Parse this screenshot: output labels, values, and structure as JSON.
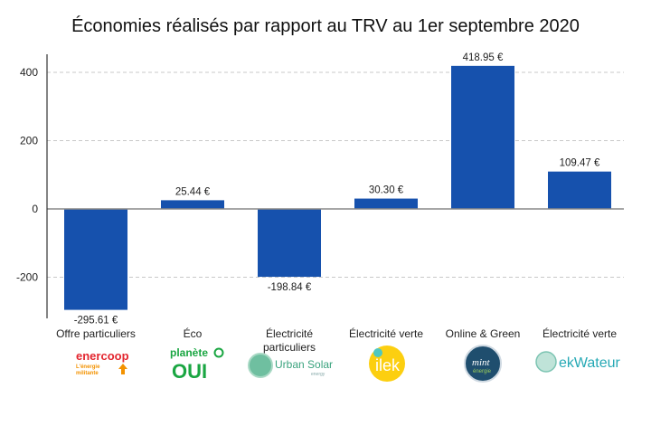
{
  "chart_data": {
    "type": "bar",
    "title": "Économies réalisés par rapport au TRV au 1er septembre 2020",
    "xlabel": "",
    "ylabel": "",
    "ylim": [
      -320,
      440
    ],
    "yticks": [
      400,
      200,
      0,
      -200
    ],
    "grid": true,
    "bar_color": "#1651ad",
    "categories": [
      "Offre particuliers",
      "Éco",
      "Électricité particuliers",
      "Électricité verte",
      "Online & Green",
      "Électricité verte"
    ],
    "suppliers": [
      "enercoop",
      "planète OUI",
      "Urban Solar",
      "ilek",
      "mint énergie",
      "ekWateur"
    ],
    "values": [
      -295.61,
      25.44,
      -198.84,
      30.3,
      418.95,
      109.47
    ],
    "data_labels": [
      "-295.61 €",
      "25.44 €",
      "-198.84 €",
      "30.30 €",
      "418.95 €",
      "109.47 €"
    ]
  },
  "logos": {
    "enercoop": {
      "name": "enercoop",
      "tagline1": "L'énergie",
      "tagline2": "militante"
    },
    "planete": {
      "top": "planète",
      "bottom": "OUI"
    },
    "urban": {
      "name": "Urban Solar",
      "sub": "energy"
    },
    "ilek": {
      "name": "ilek"
    },
    "mint": {
      "name": "mint",
      "sub": "énergie"
    },
    "ekwateur": {
      "name": "ekWateur"
    }
  }
}
